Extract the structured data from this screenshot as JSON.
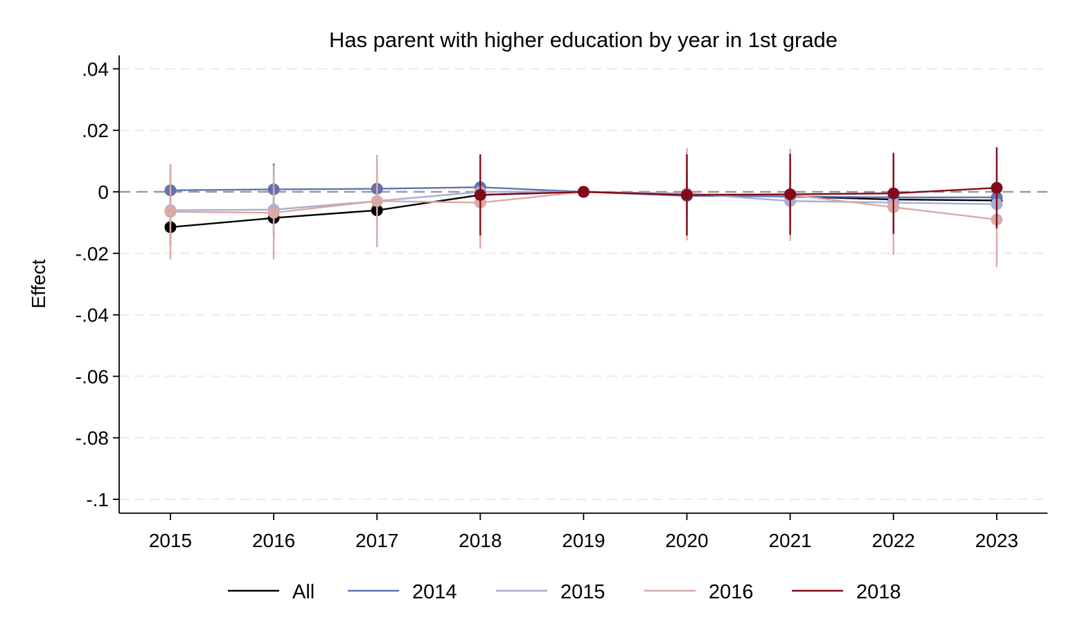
{
  "chart_data": {
    "type": "line",
    "title": "Has parent with higher education by year in 1st grade",
    "xlabel": "",
    "ylabel": "Effect",
    "x": [
      2015,
      2016,
      2017,
      2018,
      2019,
      2020,
      2021,
      2022,
      2023
    ],
    "x_tick_labels": [
      "2015",
      "2016",
      "2017",
      "2018",
      "2019",
      "2020",
      "2021",
      "2022",
      "2023"
    ],
    "ylim": [
      -0.104,
      0.044
    ],
    "y_ticks": [
      0.04,
      0.02,
      0,
      -0.02,
      -0.04,
      -0.06,
      -0.08,
      -0.1
    ],
    "y_tick_labels": [
      ".04",
      ".02",
      "0",
      "-.02",
      "-.04",
      "-.06",
      "-.08",
      "-.1"
    ],
    "reference_line": 0,
    "grid": true,
    "legend_position": "bottom",
    "error_bars": "confidence intervals",
    "series": [
      {
        "name": "All",
        "color": "#000000",
        "values": [
          -0.0115,
          -0.0085,
          -0.006,
          -0.001,
          0,
          -0.001,
          -0.0015,
          -0.0025,
          -0.0028
        ],
        "lower": [
          -0.0175,
          -0.0145,
          -0.0115,
          -0.006,
          0,
          -0.006,
          -0.0065,
          -0.0075,
          -0.0078
        ],
        "upper": [
          -0.0055,
          -0.0025,
          -0.0005,
          0.004,
          0,
          0.004,
          0.0035,
          0.0025,
          0.0022
        ]
      },
      {
        "name": "2014",
        "color": "#6272b1",
        "values": [
          0.0005,
          0.0008,
          0.001,
          0.0015,
          0,
          -0.0013,
          -0.0015,
          -0.0018,
          -0.0018
        ],
        "lower": [
          -0.0078,
          -0.0075,
          -0.007,
          -0.0065,
          0,
          -0.0095,
          -0.0095,
          -0.0098,
          -0.0098
        ],
        "upper": [
          0.0088,
          0.0092,
          0.009,
          0.0095,
          0,
          0.0069,
          0.0065,
          0.0062,
          0.0062
        ]
      },
      {
        "name": "2015",
        "color": "#a9aed6",
        "values": [
          -0.006,
          -0.0058,
          -0.003,
          0,
          0,
          -0.0005,
          -0.003,
          -0.0035,
          -0.004
        ],
        "lower": [
          -0.013,
          -0.0128,
          -0.01,
          -0.007,
          0,
          -0.0075,
          -0.01,
          -0.0105,
          -0.011
        ],
        "upper": [
          0.001,
          0.0012,
          0.004,
          0.007,
          0,
          0.0065,
          0.004,
          0.0035,
          0.003
        ]
      },
      {
        "name": "2016",
        "color": "#d9aaa5",
        "values": [
          -0.0065,
          -0.0068,
          -0.003,
          -0.0035,
          0,
          -0.0008,
          -0.001,
          -0.005,
          -0.009
        ],
        "lower": [
          -0.022,
          -0.022,
          -0.018,
          -0.0185,
          0,
          -0.0158,
          -0.016,
          -0.0205,
          -0.0245
        ],
        "upper": [
          0.009,
          0.0085,
          0.012,
          0.0115,
          0,
          0.0142,
          0.014,
          0.0105,
          0.0065
        ]
      },
      {
        "name": "2018",
        "color": "#830a1a",
        "values": [
          null,
          null,
          null,
          -0.001,
          0,
          -0.001,
          -0.0008,
          -0.0005,
          0.0013
        ],
        "lower": [
          null,
          null,
          null,
          -0.0142,
          0,
          -0.0142,
          -0.014,
          -0.0137,
          -0.0119
        ],
        "upper": [
          null,
          null,
          null,
          0.0122,
          0,
          0.0122,
          0.0124,
          0.0127,
          0.0145
        ]
      }
    ]
  }
}
